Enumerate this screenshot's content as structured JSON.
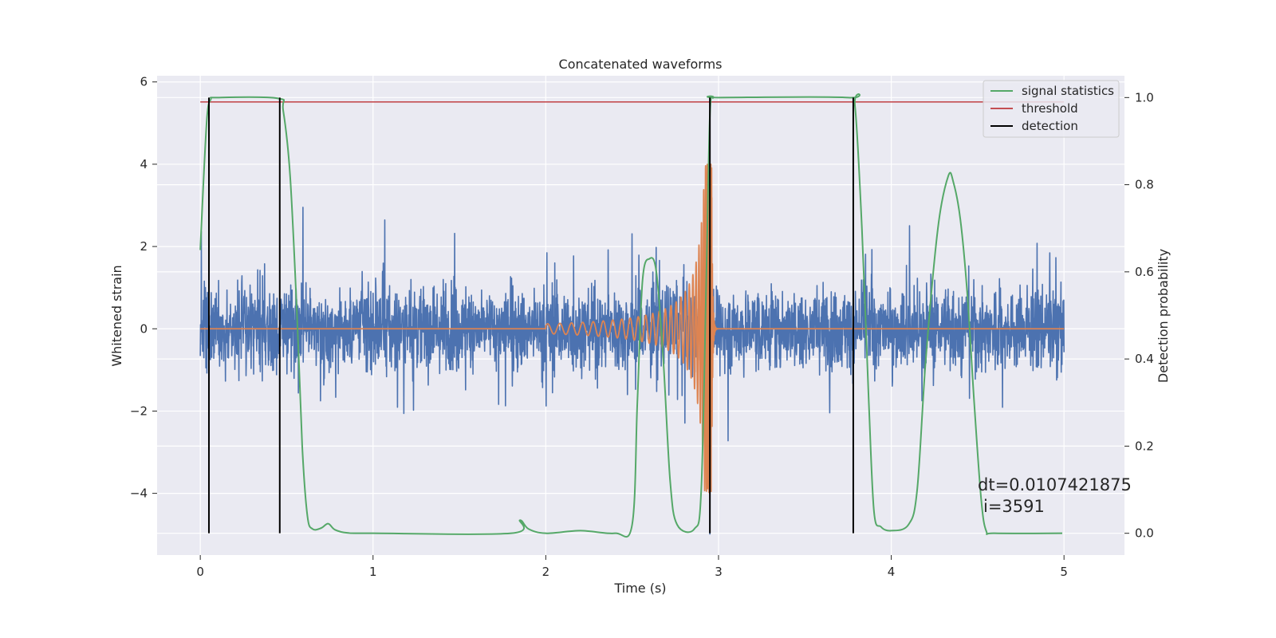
{
  "chart_data": {
    "type": "line",
    "title": "Concatenated waveforms",
    "xlabel": "Time (s)",
    "ylabel": "Whitened strain",
    "y2label": "Detection probability",
    "xlim": [
      -0.25,
      5.35
    ],
    "ylim": [
      -5.5,
      6.15
    ],
    "y2lim": [
      -0.05,
      1.05
    ],
    "xticks": [
      0,
      1,
      2,
      3,
      4,
      5
    ],
    "xtick_labels": [
      "0",
      "1",
      "2",
      "3",
      "4",
      "5"
    ],
    "yticks": [
      -4,
      -2,
      0,
      2,
      4,
      6
    ],
    "ytick_labels": [
      "−4",
      "−2",
      "0",
      "2",
      "4",
      "6"
    ],
    "y2ticks": [
      0.0,
      0.2,
      0.4,
      0.6,
      0.8,
      1.0
    ],
    "y2tick_labels": [
      "0.0",
      "0.2",
      "0.4",
      "0.6",
      "0.8",
      "1.0"
    ],
    "grid": true,
    "legend_position": "top-right",
    "colors": {
      "noise": "#4c72b0",
      "waveform": "#dd8452",
      "signal_statistics": "#55a868",
      "threshold": "#c44e52",
      "detection": "#000000",
      "background": "#eaeaf2"
    },
    "series": [
      {
        "name": "",
        "axis": "left",
        "kind": "noise",
        "x_range": [
          0,
          5
        ],
        "sigma": 0.85,
        "envelope": [
          -3.4,
          4.0
        ]
      },
      {
        "name": "",
        "axis": "left",
        "kind": "chirp",
        "x_start": 2.0,
        "x_merger": 2.96,
        "x_end": 5.0,
        "amplitude_start": 0.12,
        "amplitude_peak": 4.0
      },
      {
        "name": "signal statistics",
        "axis": "right",
        "points": [
          [
            0.0,
            0.65
          ],
          [
            0.02,
            0.82
          ],
          [
            0.04,
            0.96
          ],
          [
            0.06,
            0.995
          ],
          [
            0.1,
            1.0
          ],
          [
            0.45,
            0.998
          ],
          [
            0.48,
            0.97
          ],
          [
            0.52,
            0.82
          ],
          [
            0.56,
            0.5
          ],
          [
            0.59,
            0.2
          ],
          [
            0.62,
            0.04
          ],
          [
            0.65,
            0.01
          ],
          [
            0.7,
            0.012
          ],
          [
            0.74,
            0.022
          ],
          [
            0.78,
            0.008
          ],
          [
            0.85,
            0.001
          ],
          [
            1.0,
            0.0
          ],
          [
            1.8,
            0.0
          ],
          [
            1.85,
            0.03
          ],
          [
            1.9,
            0.01
          ],
          [
            2.0,
            0.0
          ],
          [
            2.2,
            0.006
          ],
          [
            2.4,
            0.0
          ],
          [
            2.5,
            0.02
          ],
          [
            2.53,
            0.3
          ],
          [
            2.56,
            0.58
          ],
          [
            2.6,
            0.63
          ],
          [
            2.64,
            0.6
          ],
          [
            2.68,
            0.4
          ],
          [
            2.72,
            0.12
          ],
          [
            2.76,
            0.02
          ],
          [
            2.86,
            0.01
          ],
          [
            2.9,
            0.1
          ],
          [
            2.93,
            0.6
          ],
          [
            2.95,
            0.96
          ],
          [
            2.97,
            1.0
          ],
          [
            3.0,
            1.0
          ],
          [
            3.75,
            1.0
          ],
          [
            3.79,
            0.98
          ],
          [
            3.83,
            0.7
          ],
          [
            3.87,
            0.3
          ],
          [
            3.9,
            0.05
          ],
          [
            3.94,
            0.015
          ],
          [
            4.0,
            0.006
          ],
          [
            4.1,
            0.02
          ],
          [
            4.15,
            0.1
          ],
          [
            4.2,
            0.4
          ],
          [
            4.27,
            0.7
          ],
          [
            4.33,
            0.82
          ],
          [
            4.36,
            0.805
          ],
          [
            4.4,
            0.72
          ],
          [
            4.44,
            0.55
          ],
          [
            4.48,
            0.3
          ],
          [
            4.52,
            0.08
          ],
          [
            4.55,
            0.005
          ],
          [
            4.6,
            0.0
          ],
          [
            4.99,
            0.0
          ]
        ]
      },
      {
        "name": "threshold",
        "axis": "right",
        "points": [
          [
            0.0,
            0.99
          ],
          [
            5.0,
            0.99
          ]
        ]
      },
      {
        "name": "detection",
        "axis": "right",
        "vlines": [
          0.05,
          0.46,
          2.95,
          3.78
        ],
        "vline_range": [
          0.0,
          1.0
        ]
      }
    ],
    "annotations": [
      "dt=0.0107421875",
      "i=3591"
    ]
  }
}
